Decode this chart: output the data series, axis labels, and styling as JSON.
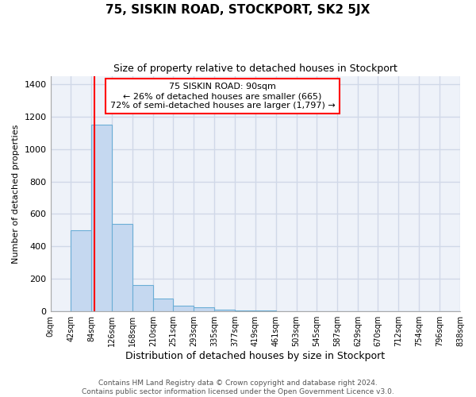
{
  "title": "75, SISKIN ROAD, STOCKPORT, SK2 5JX",
  "subtitle": "Size of property relative to detached houses in Stockport",
  "xlabel": "Distribution of detached houses by size in Stockport",
  "ylabel": "Number of detached properties",
  "bin_edges": [
    0,
    42,
    84,
    126,
    168,
    210,
    251,
    293,
    335,
    377,
    419,
    461,
    503,
    545,
    587,
    629,
    670,
    712,
    754,
    796,
    838
  ],
  "bar_heights": [
    3,
    500,
    1150,
    540,
    160,
    80,
    35,
    25,
    10,
    5,
    4,
    2,
    2,
    2,
    1,
    1,
    1,
    1,
    1,
    1
  ],
  "bar_color": "#c5d8f0",
  "bar_edge_color": "#6baed6",
  "property_line_x": 90,
  "property_line_color": "red",
  "annotation_line1": "75 SISKIN ROAD: 90sqm",
  "annotation_line2": "← 26% of detached houses are smaller (665)",
  "annotation_line3": "72% of semi-detached houses are larger (1,797) →",
  "annotation_box_color": "red",
  "ylim": [
    0,
    1450
  ],
  "yticks": [
    0,
    200,
    400,
    600,
    800,
    1000,
    1200,
    1400
  ],
  "background_color": "#eef2f9",
  "grid_color": "#d0d8e8",
  "footer_line1": "Contains HM Land Registry data © Crown copyright and database right 2024.",
  "footer_line2": "Contains public sector information licensed under the Open Government Licence v3.0.",
  "tick_labels": [
    "0sqm",
    "42sqm",
    "84sqm",
    "126sqm",
    "168sqm",
    "210sqm",
    "251sqm",
    "293sqm",
    "335sqm",
    "377sqm",
    "419sqm",
    "461sqm",
    "503sqm",
    "545sqm",
    "587sqm",
    "629sqm",
    "670sqm",
    "712sqm",
    "754sqm",
    "796sqm",
    "838sqm"
  ]
}
